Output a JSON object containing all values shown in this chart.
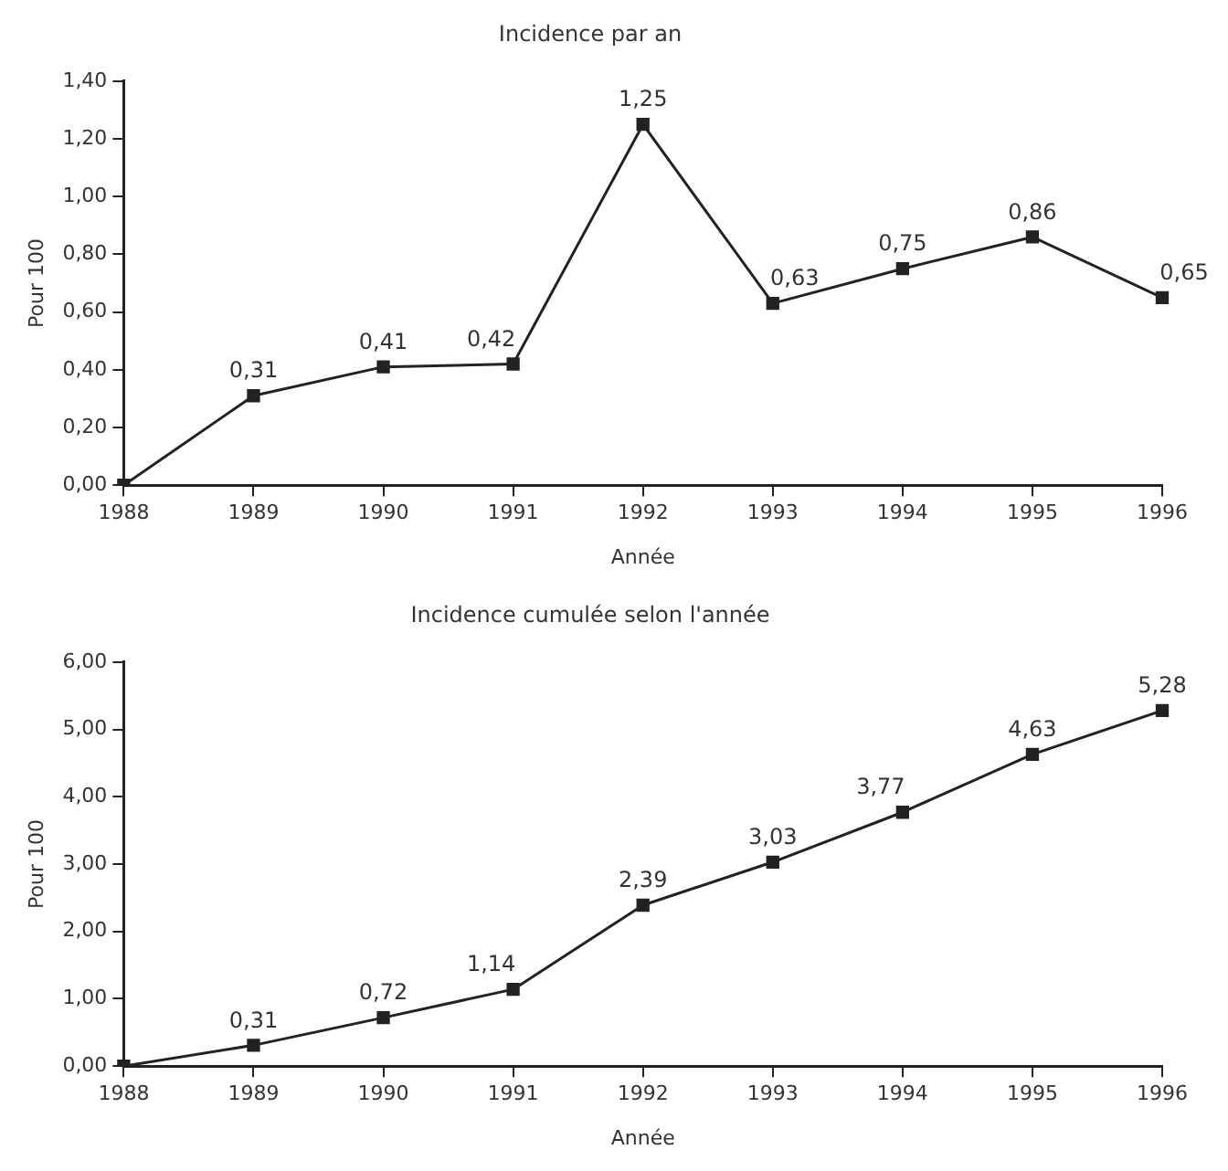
{
  "chart_data": [
    {
      "type": "line",
      "title": "Incidence par an",
      "xlabel": "Année",
      "ylabel": "Pour 100",
      "categories": [
        "1988",
        "1989",
        "1990",
        "1991",
        "1992",
        "1993",
        "1994",
        "1995",
        "1996"
      ],
      "series": [
        {
          "color": "#222222",
          "values": [
            0,
            0.31,
            0.41,
            0.42,
            1.25,
            0.63,
            0.75,
            0.86,
            0.65
          ],
          "value_labels": [
            null,
            "0,31",
            "0,41",
            "0,42",
            "1,25",
            "0,63",
            "0,75",
            "0,86",
            "0,65"
          ]
        }
      ],
      "ylim": [
        0,
        1.4
      ],
      "yticks": [
        {
          "value": 0,
          "label": "0,00"
        },
        {
          "value": 0.2,
          "label": "0,20"
        },
        {
          "value": 0.4,
          "label": "0,40"
        },
        {
          "value": 0.6,
          "label": "0,60"
        },
        {
          "value": 0.8,
          "label": "0,80"
        },
        {
          "value": 1,
          "label": "1,00"
        },
        {
          "value": 1.2,
          "label": "1,20"
        },
        {
          "value": 1.4,
          "label": "1,40"
        }
      ],
      "marker": "square",
      "line_style": "solid",
      "grid": false,
      "legend": false
    },
    {
      "type": "line",
      "title": "Incidence cumulée selon l'année",
      "xlabel": "Année",
      "ylabel": "Pour 100",
      "categories": [
        "1988",
        "1989",
        "1990",
        "1991",
        "1992",
        "1993",
        "1994",
        "1995",
        "1996"
      ],
      "series": [
        {
          "color": "#222222",
          "values": [
            0,
            0.31,
            0.72,
            1.14,
            2.39,
            3.03,
            3.77,
            4.63,
            5.28
          ],
          "value_labels": [
            null,
            "0,31",
            "0,72",
            "1,14",
            "2,39",
            "3,03",
            "3,77",
            "4,63",
            "5,28"
          ]
        }
      ],
      "ylim": [
        0,
        6
      ],
      "yticks": [
        {
          "value": 0,
          "label": "0,00"
        },
        {
          "value": 1,
          "label": "1,00"
        },
        {
          "value": 2,
          "label": "2,00"
        },
        {
          "value": 3,
          "label": "3,00"
        },
        {
          "value": 4,
          "label": "4,00"
        },
        {
          "value": 5,
          "label": "5,00"
        },
        {
          "value": 6,
          "label": "6,00"
        }
      ],
      "marker": "square",
      "line_style": "solid",
      "grid": false,
      "legend": false
    }
  ]
}
